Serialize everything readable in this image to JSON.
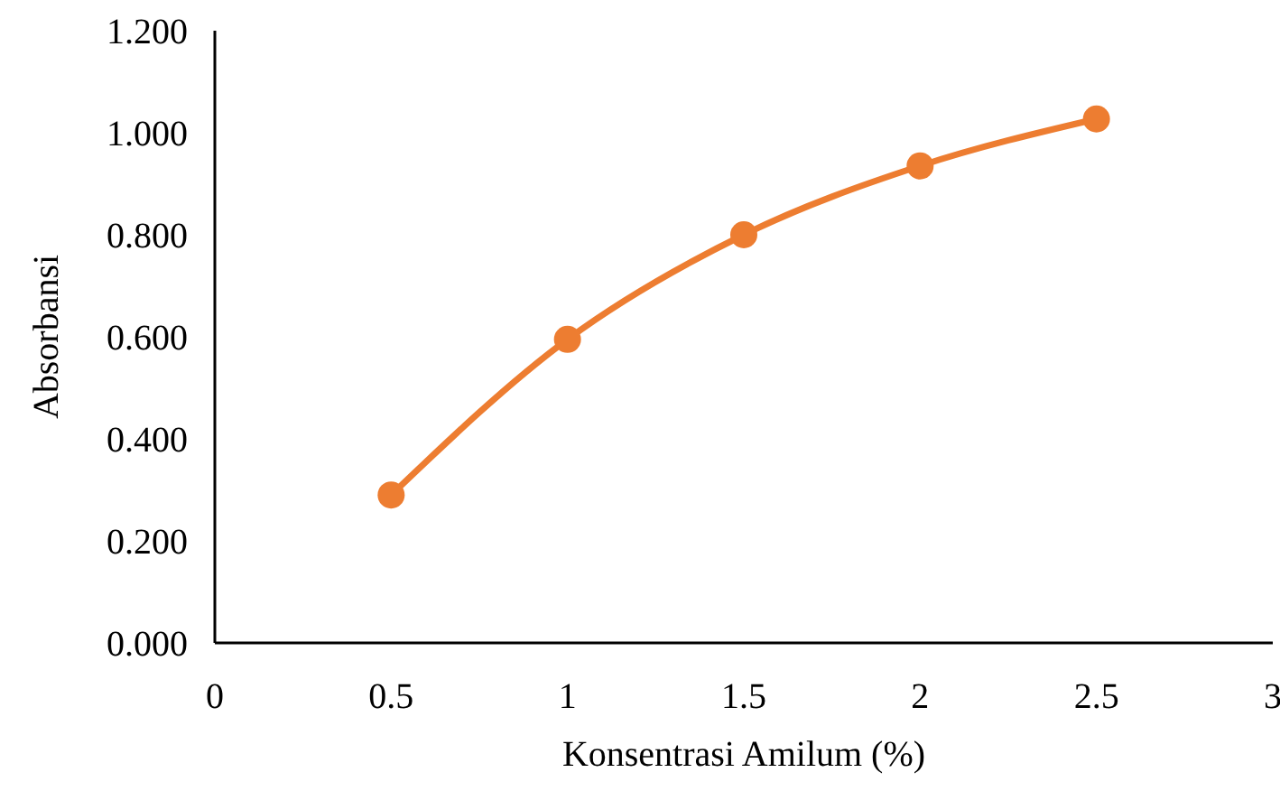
{
  "chart_data": {
    "type": "line",
    "xlabel": "Konsentrasi Amilum (%)",
    "ylabel": "Absorbansi",
    "x": [
      0.5,
      1,
      1.5,
      2,
      2.5
    ],
    "series": [
      {
        "color": "#ed7d31",
        "values": [
          0.29,
          0.595,
          0.8,
          0.935,
          1.027
        ]
      }
    ],
    "xlim": [
      0,
      3
    ],
    "xticks": [
      0,
      0.5,
      1,
      1.5,
      2,
      2.5,
      3
    ],
    "ylim": [
      0,
      1.2
    ],
    "yticks": [
      {
        "value": 0,
        "label": "0.000"
      },
      {
        "value": 0.2,
        "label": "0.200"
      },
      {
        "value": 0.4,
        "label": "0.400"
      },
      {
        "value": 0.6,
        "label": "0.600"
      },
      {
        "value": 0.8,
        "label": "0.800"
      },
      {
        "value": 1,
        "label": "1.000"
      },
      {
        "value": 1.2,
        "label": "1.200"
      }
    ],
    "grid": false,
    "marker": "circle",
    "line_style": "solid"
  }
}
